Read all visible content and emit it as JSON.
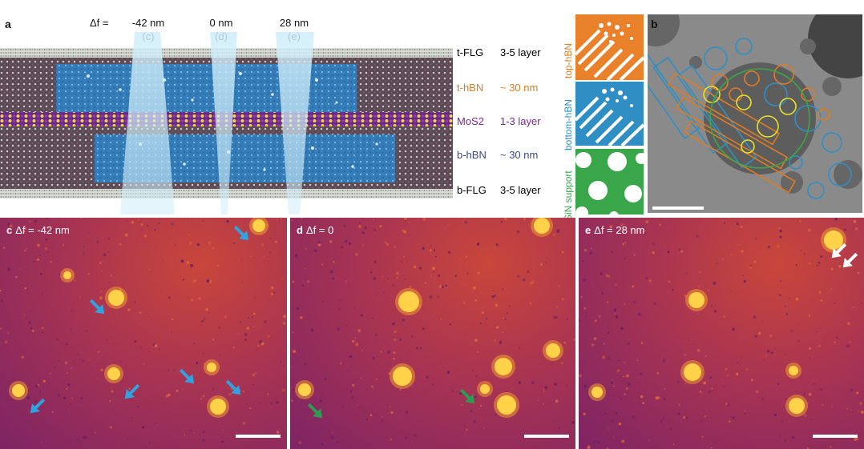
{
  "panel_a": {
    "letter": "a",
    "defocus_prefix": "Δf =",
    "beams": [
      {
        "value": "-42 nm",
        "ref": "(c)"
      },
      {
        "value": "0 nm",
        "ref": "(d)"
      },
      {
        "value": "28 nm",
        "ref": "(e)"
      }
    ],
    "layers": [
      {
        "name": "t-FLG",
        "thickness": "3-5 layer",
        "color": "#222222"
      },
      {
        "name": "t-hBN",
        "thickness": "~ 30 nm",
        "color": "#e07b22"
      },
      {
        "name": "MoS2",
        "thickness": "1-3 layer",
        "color": "#7a2a8e"
      },
      {
        "name": "b-hBN",
        "thickness": "~ 30 nm",
        "color": "#3a4a8c"
      },
      {
        "name": "b-FLG",
        "thickness": "3-5 layer",
        "color": "#111111"
      }
    ]
  },
  "schematic_tiles": [
    {
      "label": "top-hBN",
      "color": "#e9812a"
    },
    {
      "label": "bottom-hBN",
      "color": "#2f8fc4"
    },
    {
      "label": "SiN support",
      "color": "#3aa64a"
    }
  ],
  "panel_b": {
    "letter": "b"
  },
  "micrographs": [
    {
      "letter": "c",
      "caption": "Δf = -42 nm"
    },
    {
      "letter": "d",
      "caption": "Δf = 0"
    },
    {
      "letter": "e",
      "caption": "Δf = 28 nm"
    }
  ]
}
